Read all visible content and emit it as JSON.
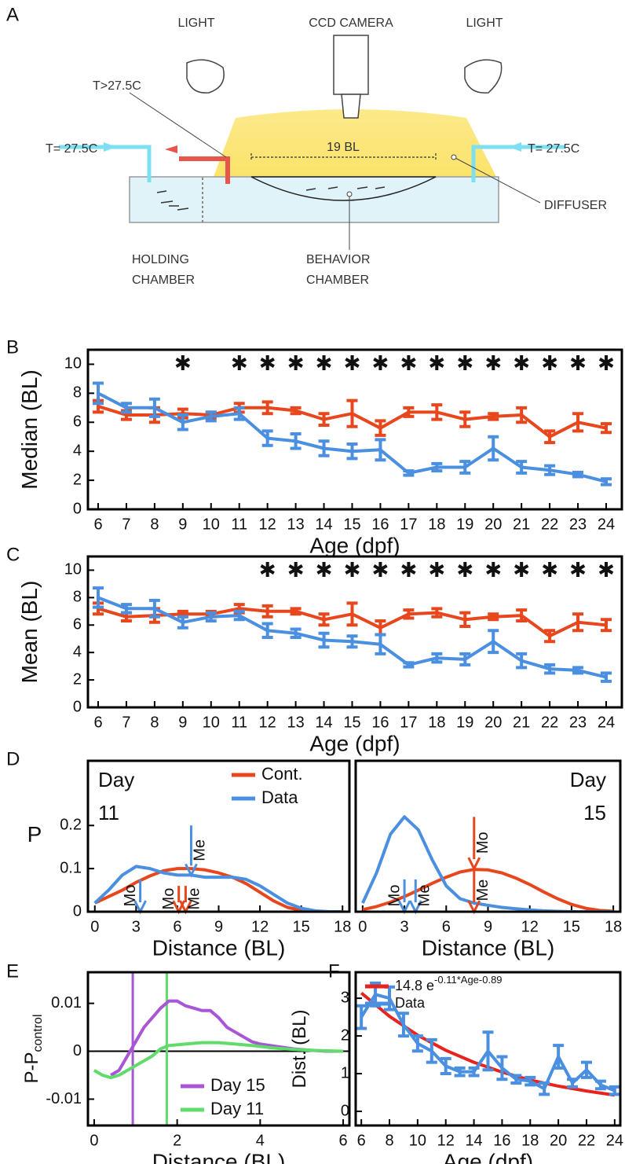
{
  "diagram": {
    "panel": "A",
    "light_left": "LIGHT",
    "camera": "CCD CAMERA",
    "light_right": "LIGHT",
    "temp_hot": "T>27.5C",
    "temp_left": "T= 27.5C",
    "temp_right": "T= 27.5C",
    "scale": "19 BL",
    "diffuser": "DIFFUSER",
    "holding": [
      "HOLDING",
      "CHAMBER"
    ],
    "behavior": [
      "BEHAVIOR",
      "CHAMBER"
    ]
  },
  "chart_data": [
    {
      "panel": "B",
      "type": "line",
      "ylabel": "Median (BL)",
      "xlabel": "Age (dpf)",
      "categories": [
        6,
        7,
        8,
        9,
        10,
        11,
        12,
        13,
        14,
        15,
        16,
        17,
        18,
        19,
        20,
        21,
        22,
        23,
        24
      ],
      "ylim": [
        0,
        11
      ],
      "yticks": [
        0,
        2,
        4,
        6,
        8,
        10
      ],
      "series": [
        {
          "color": "#e8461c",
          "values": [
            7.1,
            6.5,
            6.5,
            6.6,
            6.5,
            7.0,
            7.0,
            6.8,
            6.2,
            6.6,
            5.6,
            6.7,
            6.7,
            6.2,
            6.4,
            6.5,
            5.0,
            6.0,
            5.6
          ],
          "errors": [
            0.4,
            0.3,
            0.5,
            0.3,
            0.2,
            0.3,
            0.4,
            0.2,
            0.4,
            0.9,
            0.5,
            0.3,
            0.5,
            0.5,
            0.2,
            0.5,
            0.4,
            0.6,
            0.3
          ]
        },
        {
          "color": "#4a8fe0",
          "values": [
            8.0,
            7.0,
            7.0,
            6.0,
            6.4,
            6.6,
            4.9,
            4.7,
            4.2,
            4.0,
            4.1,
            2.5,
            2.9,
            2.9,
            4.2,
            2.9,
            2.7,
            2.4,
            1.9
          ],
          "errors": [
            0.7,
            0.3,
            0.6,
            0.5,
            0.3,
            0.4,
            0.5,
            0.5,
            0.5,
            0.5,
            0.7,
            0.15,
            0.25,
            0.4,
            0.8,
            0.4,
            0.3,
            0.15,
            0.2
          ]
        }
      ],
      "annotations": [
        {
          "x": 9,
          "text": "✱"
        },
        {
          "x": 11,
          "text": "✱"
        },
        {
          "x": 12,
          "text": "✱"
        },
        {
          "x": 13,
          "text": "✱"
        },
        {
          "x": 14,
          "text": "✱"
        },
        {
          "x": 15,
          "text": "✱"
        },
        {
          "x": 16,
          "text": "✱"
        },
        {
          "x": 17,
          "text": "✱"
        },
        {
          "x": 18,
          "text": "✱"
        },
        {
          "x": 19,
          "text": "✱"
        },
        {
          "x": 20,
          "text": "✱"
        },
        {
          "x": 21,
          "text": "✱"
        },
        {
          "x": 22,
          "text": "✱"
        },
        {
          "x": 23,
          "text": "✱"
        },
        {
          "x": 24,
          "text": "✱"
        }
      ]
    },
    {
      "panel": "C",
      "type": "line",
      "ylabel": "Mean (BL)",
      "xlabel": "Age (dpf)",
      "categories": [
        6,
        7,
        8,
        9,
        10,
        11,
        12,
        13,
        14,
        15,
        16,
        17,
        18,
        19,
        20,
        21,
        22,
        23,
        24
      ],
      "ylim": [
        0,
        11
      ],
      "yticks": [
        0,
        2,
        4,
        6,
        8,
        10
      ],
      "series": [
        {
          "color": "#e8461c",
          "values": [
            7.2,
            6.6,
            6.7,
            6.8,
            6.8,
            7.2,
            7.0,
            7.0,
            6.4,
            6.8,
            5.8,
            6.8,
            6.9,
            6.4,
            6.6,
            6.7,
            5.2,
            6.2,
            6.0
          ],
          "errors": [
            0.4,
            0.3,
            0.5,
            0.2,
            0.2,
            0.3,
            0.4,
            0.2,
            0.4,
            0.8,
            0.5,
            0.3,
            0.3,
            0.5,
            0.2,
            0.4,
            0.4,
            0.6,
            0.4
          ]
        },
        {
          "color": "#4a8fe0",
          "values": [
            8.0,
            7.2,
            7.2,
            6.2,
            6.6,
            6.7,
            5.6,
            5.4,
            4.9,
            4.8,
            4.6,
            3.1,
            3.6,
            3.5,
            4.8,
            3.4,
            2.8,
            2.7,
            2.2
          ],
          "errors": [
            0.7,
            0.3,
            0.6,
            0.4,
            0.3,
            0.3,
            0.5,
            0.3,
            0.5,
            0.4,
            0.7,
            0.15,
            0.3,
            0.4,
            0.8,
            0.5,
            0.3,
            0.2,
            0.3
          ]
        }
      ],
      "annotations": [
        {
          "x": 12,
          "text": "✱"
        },
        {
          "x": 13,
          "text": "✱"
        },
        {
          "x": 14,
          "text": "✱"
        },
        {
          "x": 15,
          "text": "✱"
        },
        {
          "x": 16,
          "text": "✱"
        },
        {
          "x": 17,
          "text": "✱"
        },
        {
          "x": 18,
          "text": "✱"
        },
        {
          "x": 19,
          "text": "✱"
        },
        {
          "x": 20,
          "text": "✱"
        },
        {
          "x": 21,
          "text": "✱"
        },
        {
          "x": 22,
          "text": "✱"
        },
        {
          "x": 23,
          "text": "✱"
        },
        {
          "x": 24,
          "text": "✱"
        }
      ]
    },
    {
      "panel": "D",
      "type": "line",
      "ylabel": "P",
      "xlabel": "Distance (BL)",
      "x": [
        0,
        1,
        2,
        3,
        4,
        5,
        6,
        7,
        8,
        9,
        10,
        11,
        12,
        13,
        14,
        15,
        16,
        17,
        18
      ],
      "xlim": [
        -0.5,
        18.5
      ],
      "xticks": [
        0,
        3,
        6,
        9,
        12,
        15,
        18
      ],
      "ylim": [
        0,
        0.35
      ],
      "yticks": [
        0,
        0.1,
        0.2
      ],
      "legend": "upper right",
      "day_label": [
        "Day",
        "11"
      ],
      "day_corner": "upper left",
      "series": [
        {
          "name": "Cont.",
          "color": "#e8461c",
          "values": [
            0.02,
            0.035,
            0.05,
            0.068,
            0.083,
            0.095,
            0.1,
            0.1,
            0.097,
            0.09,
            0.08,
            0.065,
            0.045,
            0.025,
            0.01,
            0.003,
            0.0005,
            0,
            0
          ]
        },
        {
          "name": "Data",
          "color": "#4a8fe0",
          "values": [
            0.02,
            0.05,
            0.085,
            0.105,
            0.1,
            0.09,
            0.085,
            0.085,
            0.08,
            0.08,
            0.08,
            0.075,
            0.06,
            0.04,
            0.02,
            0.008,
            0.002,
            0,
            0
          ]
        }
      ],
      "arrows": [
        {
          "text": "Mo",
          "x": 3.3,
          "from": 0.075,
          "to": 0,
          "color": "#4a8fe0",
          "side": "left"
        },
        {
          "text": "Me",
          "x": 7.0,
          "from": 0.2,
          "to": 0.085,
          "color": "#4a8fe0",
          "side": "right"
        },
        {
          "text": "Mo",
          "x": 6.1,
          "from": 0.06,
          "to": 0,
          "color": "#e8461c",
          "side": "left"
        },
        {
          "text": "Me",
          "x": 6.6,
          "from": 0.06,
          "to": 0,
          "color": "#e8461c",
          "side": "right"
        }
      ]
    },
    {
      "type": "line",
      "xlabel": "Distance (BL)",
      "x": [
        0,
        1,
        2,
        3,
        4,
        5,
        6,
        7,
        8,
        9,
        10,
        11,
        12,
        13,
        14,
        15,
        16,
        17,
        18
      ],
      "xlim": [
        -0.5,
        18.5
      ],
      "xticks": [
        0,
        3,
        6,
        9,
        12,
        15,
        18
      ],
      "ylim": [
        0,
        0.35
      ],
      "day_label": [
        "Day",
        "15"
      ],
      "day_corner": "upper right",
      "series": [
        {
          "color": "#e8461c",
          "values": [
            0.005,
            0.012,
            0.022,
            0.035,
            0.05,
            0.066,
            0.08,
            0.092,
            0.098,
            0.097,
            0.09,
            0.078,
            0.063,
            0.046,
            0.03,
            0.017,
            0.008,
            0.003,
            0.001
          ]
        },
        {
          "color": "#4a8fe0",
          "values": [
            0.02,
            0.09,
            0.18,
            0.22,
            0.19,
            0.12,
            0.06,
            0.03,
            0.02,
            0.015,
            0.01,
            0.007,
            0.004,
            0.002,
            0.001,
            0,
            0,
            0,
            0
          ]
        }
      ],
      "arrows": [
        {
          "text": "Mo",
          "x": 3.0,
          "from": 0.075,
          "to": 0,
          "color": "#4a8fe0",
          "side": "left"
        },
        {
          "text": "Me",
          "x": 3.8,
          "from": 0.075,
          "to": 0,
          "color": "#4a8fe0",
          "side": "right"
        },
        {
          "text": "Mo",
          "x": 8.0,
          "from": 0.22,
          "to": 0.1,
          "color": "#e8461c",
          "side": "right"
        },
        {
          "text": "Me",
          "x": 8.0,
          "from": 0.1,
          "to": 0,
          "color": "#e8461c",
          "side": "right"
        }
      ]
    },
    {
      "panel": "E",
      "type": "line",
      "ylabel": "P-P",
      "ylabel_sub": "control",
      "xlabel": "Distance (BL)",
      "xlim": [
        -0.15,
        6.15
      ],
      "xticks": [
        0,
        2,
        4,
        6
      ],
      "ylim": [
        -0.0155,
        0.0165
      ],
      "yticks": [
        -0.01,
        0,
        0.01
      ],
      "hline": 0,
      "legend": "lower right",
      "vlines": [
        {
          "x": 0.93,
          "color": "#a855d6"
        },
        {
          "x": 1.75,
          "color": "#5fdc6a"
        }
      ],
      "series": [
        {
          "name": "Day 15",
          "color": "#a855d6",
          "x": [
            0.4,
            0.6,
            0.8,
            1.0,
            1.2,
            1.4,
            1.6,
            1.8,
            2.0,
            2.2,
            2.4,
            2.6,
            2.8,
            3.0,
            3.2,
            3.4,
            3.6,
            3.8,
            4.0,
            4.4,
            4.8,
            5.2,
            5.6,
            6.0
          ],
          "values": [
            -0.005,
            -0.004,
            -0.001,
            0.002,
            0.005,
            0.007,
            0.009,
            0.0105,
            0.0105,
            0.0095,
            0.009,
            0.0085,
            0.0085,
            0.007,
            0.005,
            0.004,
            0.003,
            0.002,
            0.0015,
            0.001,
            0.0005,
            0.0002,
            0,
            0
          ]
        },
        {
          "name": "Day 11",
          "color": "#5fdc6a",
          "x": [
            0,
            0.2,
            0.4,
            0.6,
            0.8,
            1.0,
            1.2,
            1.4,
            1.6,
            1.8,
            2.2,
            2.6,
            3.0,
            3.4,
            3.8,
            4.2,
            4.6,
            5.0,
            5.5,
            6.0
          ],
          "values": [
            -0.004,
            -0.005,
            -0.0055,
            -0.005,
            -0.004,
            -0.003,
            -0.002,
            -0.001,
            0.0005,
            0.0012,
            0.0015,
            0.0018,
            0.0018,
            0.0015,
            0.0012,
            0.0008,
            0.0005,
            0.0003,
            0.0001,
            0
          ]
        }
      ]
    },
    {
      "panel": "F",
      "type": "line",
      "ylabel": "Dist. (BL)",
      "xlabel": "Age (dpf)",
      "xlim": [
        5.6,
        24.4
      ],
      "xticks": [
        6,
        8,
        10,
        12,
        14,
        16,
        18,
        20,
        22,
        24
      ],
      "ylim": [
        -0.375,
        3.69
      ],
      "yticks": [
        0,
        1,
        2,
        3
      ],
      "legend": "upper left",
      "series": [
        {
          "name": "14.8 e",
          "exponent": "-0.11*Age-0.89",
          "color": "#e8231c",
          "x": [
            6,
            8,
            10,
            12,
            14,
            16,
            18,
            20,
            22,
            24
          ],
          "values": [
            3.14,
            2.52,
            2.02,
            1.62,
            1.3,
            1.04,
            0.83,
            0.67,
            0.54,
            0.43
          ]
        },
        {
          "name": "Data",
          "color": "#4a8fe0",
          "x": [
            6,
            7,
            8,
            9,
            10,
            11,
            12,
            13,
            14,
            15,
            16,
            17,
            18,
            19,
            20,
            21,
            22,
            23,
            24
          ],
          "values": [
            2.5,
            3.1,
            3.0,
            2.3,
            1.8,
            1.6,
            1.2,
            1.05,
            1.05,
            1.6,
            1.15,
            0.85,
            0.8,
            0.6,
            1.45,
            0.75,
            1.1,
            0.7,
            0.55
          ],
          "errors": [
            0.3,
            0.3,
            0.3,
            0.3,
            0.2,
            0.3,
            0.2,
            0.1,
            0.1,
            0.5,
            0.3,
            0.1,
            0.1,
            0.15,
            0.3,
            0.1,
            0.2,
            0.1,
            0.1
          ]
        }
      ]
    }
  ]
}
